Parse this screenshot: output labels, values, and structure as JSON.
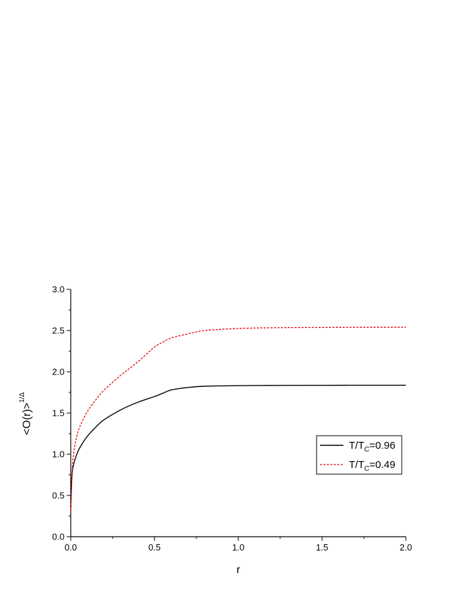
{
  "chart_data": {
    "type": "line",
    "title": "",
    "xlabel": "r",
    "ylabel": {
      "main": "<O(r)>",
      "superscript": "1/Δ"
    },
    "xlim": [
      0.0,
      2.0
    ],
    "ylim": [
      0.0,
      3.0
    ],
    "x_ticks": [
      "0.0",
      "0.5",
      "1.0",
      "1.5",
      "2.0"
    ],
    "y_ticks": [
      "0.0",
      "0.5",
      "1.0",
      "1.5",
      "2.0",
      "2.5",
      "3.0"
    ],
    "grid": false,
    "legend_position": "right",
    "series": [
      {
        "name": "T/T_C=0.96",
        "legend_parts": {
          "pre": "T/T",
          "sub": "C",
          "post": "=0.96"
        },
        "color": "#000000",
        "dash": "solid",
        "x": [
          0.0,
          0.005,
          0.01,
          0.02,
          0.04,
          0.06,
          0.1,
          0.15,
          0.2,
          0.3,
          0.4,
          0.5,
          0.55,
          0.6,
          0.7,
          0.8,
          1.0,
          1.25,
          1.5,
          1.75,
          2.0
        ],
        "y": [
          0.35,
          0.65,
          0.8,
          0.9,
          1.02,
          1.1,
          1.22,
          1.33,
          1.42,
          1.54,
          1.63,
          1.7,
          1.74,
          1.78,
          1.81,
          1.825,
          1.832,
          1.835,
          1.836,
          1.837,
          1.837
        ]
      },
      {
        "name": "T/T_C=0.49",
        "legend_parts": {
          "pre": "T/T",
          "sub": "C",
          "post": "=0.49"
        },
        "color": "#e8000b",
        "dash": "dashed",
        "x": [
          0.0,
          0.005,
          0.01,
          0.02,
          0.04,
          0.06,
          0.1,
          0.15,
          0.2,
          0.3,
          0.4,
          0.5,
          0.55,
          0.6,
          0.7,
          0.8,
          1.0,
          1.25,
          1.5,
          1.75,
          2.0
        ],
        "y": [
          0.3,
          0.6,
          0.85,
          1.05,
          1.25,
          1.36,
          1.52,
          1.66,
          1.78,
          1.96,
          2.12,
          2.3,
          2.36,
          2.41,
          2.46,
          2.5,
          2.525,
          2.535,
          2.538,
          2.54,
          2.54
        ]
      }
    ]
  }
}
